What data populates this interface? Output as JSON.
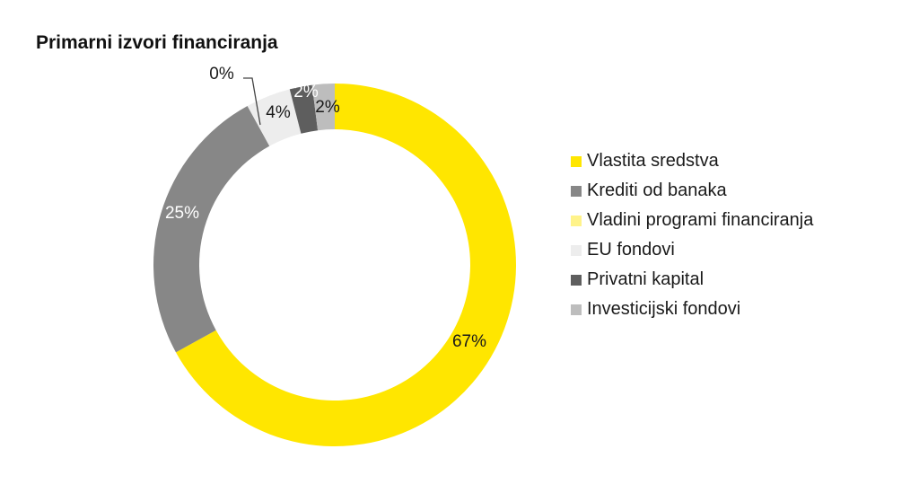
{
  "title": "Primarni izvori financiranja",
  "chart_data": {
    "type": "pie",
    "subtype": "donut",
    "title": "Primarni izvori financiranja",
    "categories": [
      "Vlastita sredstva",
      "Krediti od banaka",
      "Vladini programi financiranja",
      "EU fondovi",
      "Privatni kapital",
      "Investicijski fondovi"
    ],
    "values": [
      67,
      25,
      0,
      4,
      2,
      2
    ],
    "labels": [
      "67%",
      "25%",
      "0%",
      "4%",
      "2%",
      "2%"
    ],
    "colors": [
      "#FFE600",
      "#878787",
      "#FFF38A",
      "#EDEDED",
      "#5E5E5E",
      "#BDBDBD"
    ],
    "legend_position": "right",
    "start_angle": "12 o'clock, clockwise"
  },
  "legend": {
    "items": [
      {
        "label": "Vlastita sredstva",
        "color": "#FFE600"
      },
      {
        "label": "Krediti od banaka",
        "color": "#878787"
      },
      {
        "label": "Vladini programi financiranja",
        "color": "#FFF38A"
      },
      {
        "label": "EU fondovi",
        "color": "#EDEDED"
      },
      {
        "label": "Privatni kapital",
        "color": "#5E5E5E"
      },
      {
        "label": "Investicijski fondovi",
        "color": "#BDBDBD"
      }
    ]
  }
}
